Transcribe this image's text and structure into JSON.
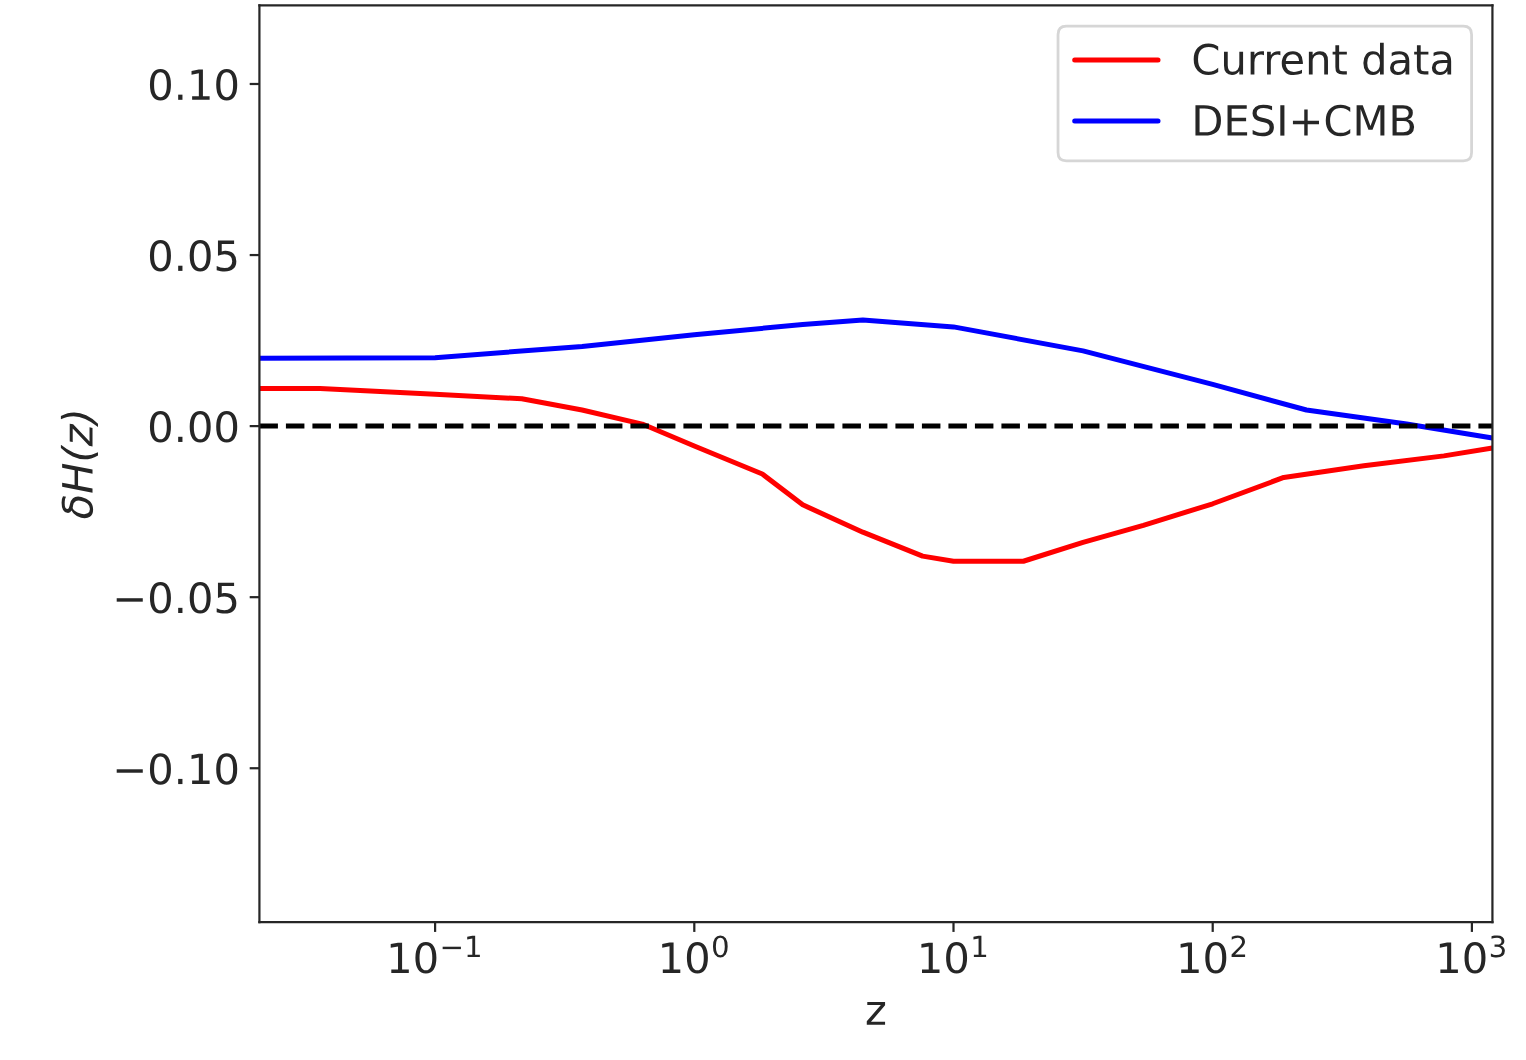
{
  "chart_data": {
    "type": "line",
    "xlabel": "z",
    "ylabel": "δH(z)",
    "log": "x",
    "xlim": [
      0.021,
      1200
    ],
    "ylim": [
      -0.145,
      0.123
    ],
    "xticks": [
      {
        "value": 0.1,
        "label": "10$^{−1}$"
      },
      {
        "value": 1,
        "label": "10$^{0}$"
      },
      {
        "value": 10,
        "label": "10$^{1}$"
      },
      {
        "value": 100,
        "label": "10$^{2}$"
      },
      {
        "value": 1000,
        "label": "10$^{3}$"
      }
    ],
    "yticks": [
      {
        "value": -0.1,
        "label": "−0.10"
      },
      {
        "value": -0.05,
        "label": "−0.05"
      },
      {
        "value": 0,
        "label": "0.00"
      },
      {
        "value": 0.05,
        "label": "0.05"
      },
      {
        "value": 0.1,
        "label": "0.10"
      }
    ],
    "series": [
      {
        "name": "Current data",
        "color": "#ff0000",
        "x": [
          0.021,
          0.036,
          0.1,
          0.216,
          0.369,
          0.63,
          1,
          1.83,
          2.62,
          4.47,
          7.6,
          10,
          18.6,
          31.6,
          54,
          100,
          188,
          383,
          780,
          1200
        ],
        "values": [
          0.011,
          0.011,
          0.0093,
          0.008,
          0.0047,
          0.0006,
          -0.0058,
          -0.014,
          -0.023,
          -0.031,
          -0.038,
          -0.0395,
          -0.0395,
          -0.034,
          -0.029,
          -0.0227,
          -0.015,
          -0.0116,
          -0.0087,
          -0.0064
        ]
      },
      {
        "name": "DESI+CMB",
        "color": "#0000ff",
        "x": [
          0.021,
          0.1,
          0.369,
          1,
          2.62,
          4.47,
          10,
          31.6,
          100,
          230,
          560,
          1200
        ],
        "values": [
          0.0198,
          0.02,
          0.0233,
          0.0267,
          0.0297,
          0.031,
          0.029,
          0.022,
          0.0122,
          0.0047,
          0.0006,
          -0.0035
        ]
      }
    ],
    "ref_lines": [
      {
        "axis": "y",
        "value": 0,
        "color": "#000000",
        "line_style": "dashed"
      }
    ],
    "legend": "top right",
    "grid": false
  }
}
